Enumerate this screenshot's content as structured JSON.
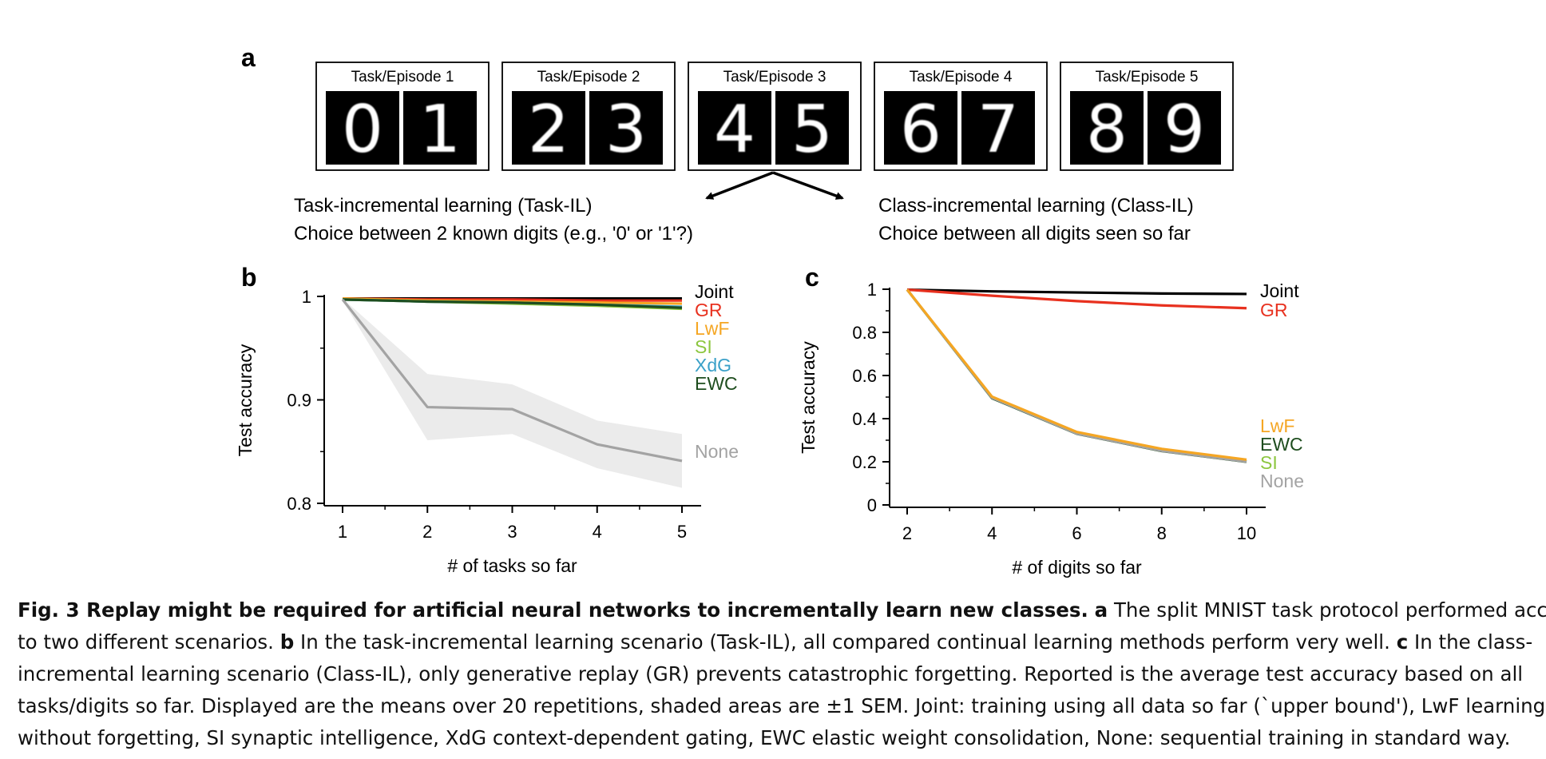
{
  "panel_letters": {
    "a": "a",
    "b": "b",
    "c": "c"
  },
  "tasks": [
    {
      "label": "Task/Episode 1",
      "digits": [
        "0",
        "1"
      ]
    },
    {
      "label": "Task/Episode 2",
      "digits": [
        "2",
        "3"
      ]
    },
    {
      "label": "Task/Episode 3",
      "digits": [
        "4",
        "5"
      ]
    },
    {
      "label": "Task/Episode 4",
      "digits": [
        "6",
        "7"
      ]
    },
    {
      "label": "Task/Episode 5",
      "digits": [
        "8",
        "9"
      ]
    }
  ],
  "scenarios": {
    "task_il": {
      "title": "Task-incremental learning (Task-IL)",
      "desc": "Choice between 2 known digits (e.g., '0' or '1'?)"
    },
    "class_il": {
      "title": "Class-incremental learning (Class-IL)",
      "desc": "Choice between all digits seen so far"
    }
  },
  "colors": {
    "Joint": "#000000",
    "GR": "#e8311f",
    "LwF": "#f5a623",
    "SI": "#8cc63f",
    "XdG": "#3aa0c8",
    "EWC": "#1e4d1e",
    "None": "#a3a3a3",
    "band": "#ebebeb"
  },
  "chart_data": [
    {
      "type": "line",
      "panel": "b",
      "xlabel": "# of tasks so far",
      "ylabel": "Test accuracy",
      "x": [
        1,
        2,
        3,
        4,
        5
      ],
      "xticks": [
        "1",
        "2",
        "3",
        "4",
        "5"
      ],
      "yticks": [
        "0.8",
        "0.9",
        "1"
      ],
      "ylim": [
        0.8,
        1.0
      ],
      "series": [
        {
          "name": "Joint",
          "values": [
            0.998,
            0.998,
            0.998,
            0.998,
            0.998
          ]
        },
        {
          "name": "GR",
          "values": [
            0.998,
            0.997,
            0.997,
            0.996,
            0.996
          ]
        },
        {
          "name": "LwF",
          "values": [
            0.998,
            0.996,
            0.995,
            0.994,
            0.993
          ]
        },
        {
          "name": "SI",
          "values": [
            0.997,
            0.995,
            0.993,
            0.991,
            0.988
          ]
        },
        {
          "name": "XdG",
          "values": [
            0.997,
            0.995,
            0.994,
            0.992,
            0.99
          ]
        },
        {
          "name": "EWC",
          "values": [
            0.997,
            0.995,
            0.994,
            0.992,
            0.989
          ]
        },
        {
          "name": "None",
          "values": [
            0.997,
            0.893,
            0.891,
            0.857,
            0.841
          ],
          "band_upper": [
            0.998,
            0.925,
            0.915,
            0.88,
            0.867
          ],
          "band_lower": [
            0.996,
            0.861,
            0.867,
            0.834,
            0.815
          ]
        }
      ],
      "legend": [
        "Joint",
        "GR",
        "LwF",
        "SI",
        "XdG",
        "EWC"
      ],
      "end_labels": [
        "None"
      ]
    },
    {
      "type": "line",
      "panel": "c",
      "xlabel": "# of digits so far",
      "ylabel": "Test accuracy",
      "x": [
        2,
        4,
        6,
        8,
        10
      ],
      "xticks": [
        "2",
        "4",
        "6",
        "8",
        "10"
      ],
      "yticks": [
        "0",
        "0.2",
        "0.4",
        "0.6",
        "0.8",
        "1"
      ],
      "ylim": [
        0,
        1.0
      ],
      "series": [
        {
          "name": "Joint",
          "values": [
            0.998,
            0.99,
            0.985,
            0.98,
            0.978
          ]
        },
        {
          "name": "GR",
          "values": [
            0.998,
            0.97,
            0.945,
            0.925,
            0.912
          ]
        },
        {
          "name": "EWC",
          "values": [
            0.998,
            0.495,
            0.33,
            0.25,
            0.2
          ]
        },
        {
          "name": "SI",
          "values": [
            0.998,
            0.498,
            0.332,
            0.252,
            0.202
          ]
        },
        {
          "name": "None",
          "values": [
            0.998,
            0.497,
            0.331,
            0.251,
            0.201
          ]
        },
        {
          "name": "LwF",
          "values": [
            0.998,
            0.502,
            0.338,
            0.26,
            0.21
          ]
        }
      ],
      "end_labels": [
        "Joint",
        "GR"
      ],
      "legend": [
        "LwF",
        "EWC",
        "SI",
        "None"
      ]
    }
  ],
  "caption": {
    "lines": [
      {
        "bold": "Fig. 3 Replay might be required for artificial neural networks to incrementally learn new classes.",
        "b2": "a",
        "text": " The split MNIST task protocol performed according"
      },
      {
        "text": "to two different scenarios. ",
        "b2": "b",
        "text2": " In the task-incremental learning scenario (Task-IL), all compared continual learning methods perform very well. ",
        "b3": "c",
        "text3": " In the class-"
      },
      {
        "text": "incremental learning scenario (Class-IL), only generative replay (GR) prevents catastrophic forgetting. Reported is the average test accuracy based on all"
      },
      {
        "text": "tasks/digits so far. Displayed are the means over 20 repetitions, shaded areas are ±1 SEM. Joint: training using all data so far (`upper bound'), LwF learning"
      },
      {
        "text": "without forgetting, SI synaptic intelligence, XdG context-dependent gating, EWC elastic weight consolidation, None: sequential training in standard way."
      }
    ]
  }
}
